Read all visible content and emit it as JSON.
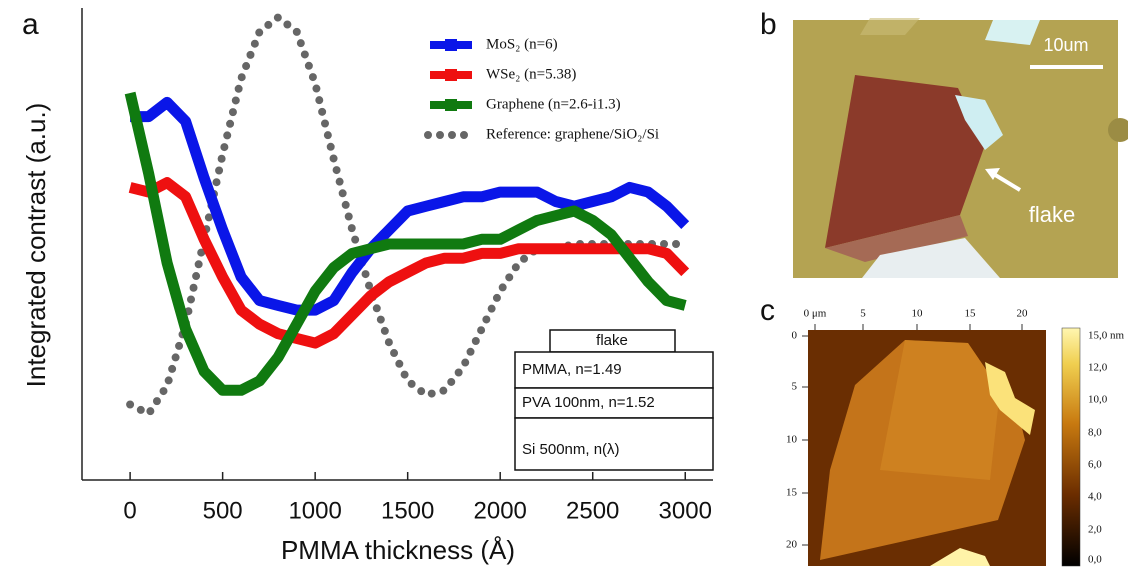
{
  "panel_labels": [
    "a",
    "b",
    "c"
  ],
  "chart_data": {
    "type": "line",
    "x_label": "PMMA thickness (Å)",
    "y_label": "Integrated contrast (a.u.)",
    "x": [
      0,
      100,
      200,
      300,
      400,
      500,
      600,
      700,
      800,
      900,
      1000,
      1100,
      1200,
      1300,
      1400,
      1500,
      1600,
      1700,
      1800,
      1900,
      2000,
      2100,
      2200,
      2300,
      2400,
      2500,
      2600,
      2700,
      2800,
      2900,
      3000
    ],
    "xlim": [
      -260,
      3150
    ],
    "xticks": [
      0,
      500,
      1000,
      1500,
      2000,
      2500,
      3000
    ],
    "ylim": [
      0,
      1
    ],
    "series": [
      {
        "name": "MoS₂ (n=6)",
        "color": "#0a16e8",
        "style": "solid",
        "values": [
          0.77,
          0.77,
          0.8,
          0.76,
          0.64,
          0.53,
          0.43,
          0.38,
          0.37,
          0.36,
          0.36,
          0.38,
          0.44,
          0.49,
          0.53,
          0.57,
          0.58,
          0.59,
          0.6,
          0.6,
          0.61,
          0.61,
          0.61,
          0.59,
          0.58,
          0.59,
          0.6,
          0.62,
          0.61,
          0.58,
          0.54
        ]
      },
      {
        "name": "WSe₂ (n=5.38)",
        "color": "#ee1010",
        "style": "solid",
        "values": [
          0.62,
          0.61,
          0.63,
          0.6,
          0.51,
          0.43,
          0.36,
          0.33,
          0.31,
          0.3,
          0.29,
          0.31,
          0.35,
          0.39,
          0.42,
          0.44,
          0.46,
          0.47,
          0.47,
          0.48,
          0.48,
          0.49,
          0.49,
          0.49,
          0.49,
          0.49,
          0.49,
          0.49,
          0.49,
          0.48,
          0.44
        ]
      },
      {
        "name": "Graphene (n=2.6-i1.3)",
        "color": "#107a10",
        "style": "solid",
        "values": [
          0.82,
          0.65,
          0.46,
          0.32,
          0.23,
          0.19,
          0.19,
          0.21,
          0.26,
          0.33,
          0.4,
          0.45,
          0.48,
          0.49,
          0.5,
          0.5,
          0.5,
          0.5,
          0.5,
          0.51,
          0.51,
          0.53,
          0.55,
          0.56,
          0.57,
          0.55,
          0.52,
          0.47,
          0.42,
          0.38,
          0.37
        ]
      },
      {
        "name": "Reference: graphene/SiO₂/Si",
        "color": "#666666",
        "style": "dotted",
        "values": [
          0.16,
          0.14,
          0.2,
          0.33,
          0.51,
          0.69,
          0.85,
          0.95,
          0.98,
          0.95,
          0.84,
          0.68,
          0.53,
          0.4,
          0.29,
          0.21,
          0.18,
          0.19,
          0.24,
          0.32,
          0.4,
          0.46,
          0.49,
          0.49,
          0.5,
          0.5,
          0.5,
          0.5,
          0.5,
          0.5,
          0.5
        ]
      }
    ],
    "legend": "top-right",
    "inset": [
      "flake",
      "PMMA, n=1.49",
      "PVA 100nm, n=1.52",
      "Si 500nm, n(λ)"
    ]
  },
  "panel_b": {
    "scale_bar": "10um",
    "annotation": "flake"
  },
  "panel_c": {
    "top_ticks": [
      "0 μm",
      "5",
      "10",
      "15",
      "20"
    ],
    "left_ticks": [
      "0",
      "5",
      "10",
      "15",
      "20"
    ],
    "colorbar_ticks": [
      "15,0 nm",
      "12,0",
      "10,0",
      "8,0",
      "6,0",
      "4,0",
      "2,0",
      "0,0"
    ]
  }
}
